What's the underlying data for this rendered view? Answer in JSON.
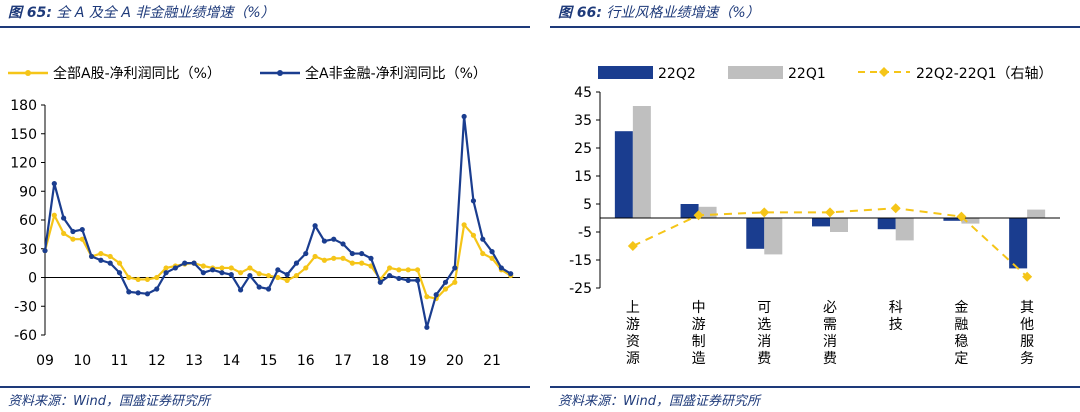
{
  "left": {
    "fig_label": "图 65:",
    "title": "全 A 及全 A 非金融业绩增速（%）",
    "source": "资料来源：Wind，国盛证券研究所",
    "chart_data": {
      "type": "line",
      "y_ticks": [
        "180",
        "150",
        "120",
        "90",
        "60",
        "30",
        "0",
        "-30",
        "-60"
      ],
      "ylim": [
        -60,
        180
      ],
      "x_ticks": [
        "09",
        "10",
        "11",
        "12",
        "13",
        "14",
        "15",
        "16",
        "17",
        "18",
        "19",
        "20",
        "21"
      ],
      "x_tick_positions": [
        2009.0,
        2010.0,
        2011.0,
        2012.0,
        2013.0,
        2014.0,
        2015.0,
        2016.0,
        2017.0,
        2018.0,
        2019.0,
        2020.0,
        2021.0
      ],
      "xlim": [
        2009.0,
        2021.75
      ],
      "x": [
        2009.0,
        2009.25,
        2009.5,
        2009.75,
        2010.0,
        2010.25,
        2010.5,
        2010.75,
        2011.0,
        2011.25,
        2011.5,
        2011.75,
        2012.0,
        2012.25,
        2012.5,
        2012.75,
        2013.0,
        2013.25,
        2013.5,
        2013.75,
        2014.0,
        2014.25,
        2014.5,
        2014.75,
        2015.0,
        2015.25,
        2015.5,
        2015.75,
        2016.0,
        2016.25,
        2016.5,
        2016.75,
        2017.0,
        2017.25,
        2017.5,
        2017.75,
        2018.0,
        2018.25,
        2018.5,
        2018.75,
        2019.0,
        2019.25,
        2019.5,
        2019.75,
        2020.0,
        2020.25,
        2020.5,
        2020.75,
        2021.0,
        2021.25,
        2021.5
      ],
      "series": [
        {
          "name": "全部A股-净利润同比（%）",
          "color": "#f5c518",
          "values": [
            28,
            65,
            46,
            40,
            40,
            22,
            25,
            22,
            15,
            0,
            -2,
            -2,
            0,
            10,
            12,
            14,
            15,
            12,
            10,
            10,
            10,
            5,
            10,
            4,
            2,
            0,
            -3,
            2,
            10,
            22,
            18,
            20,
            20,
            15,
            15,
            12,
            -2,
            10,
            8,
            8,
            8,
            -20,
            -22,
            -12,
            -5,
            55,
            44,
            25,
            20,
            8,
            2
          ]
        },
        {
          "name": "全A非金融-净利润同比（%）",
          "color": "#1a3d8f",
          "values": [
            28,
            98,
            62,
            48,
            50,
            22,
            18,
            15,
            5,
            -15,
            -16,
            -17,
            -12,
            5,
            10,
            15,
            15,
            5,
            8,
            5,
            3,
            -13,
            2,
            -10,
            -12,
            8,
            3,
            15,
            25,
            54,
            38,
            40,
            35,
            25,
            25,
            20,
            -5,
            2,
            -1,
            -3,
            -3,
            -52,
            -18,
            -5,
            10,
            168,
            80,
            40,
            27,
            10,
            4
          ]
        }
      ]
    }
  },
  "right": {
    "fig_label": "图 66:",
    "title": "行业风格业绩增速（%）",
    "source": "资料来源：Wind，国盛证券研究所",
    "chart_data": {
      "type": "bar",
      "categories": [
        "上游资源",
        "中游制造",
        "可选消费",
        "必需消费",
        "科技",
        "金融稳定",
        "其他服务"
      ],
      "y_ticks": [
        "45",
        "35",
        "25",
        "15",
        "5",
        "-5",
        "-15",
        "-25"
      ],
      "ylim": [
        -25,
        45
      ],
      "series": [
        {
          "name": "22Q2",
          "color": "#1a3d8f",
          "type": "bar",
          "values": [
            31,
            5,
            -11,
            -3,
            -4,
            -1,
            -18
          ]
        },
        {
          "name": "22Q1",
          "color": "#bfbfbf",
          "type": "bar",
          "values": [
            40,
            4,
            -13,
            -5,
            -8,
            -2,
            3
          ]
        },
        {
          "name": "22Q2-22Q1（右轴）",
          "color": "#f5c518",
          "type": "line",
          "values": [
            -10,
            1,
            2,
            2,
            3.5,
            0.5,
            -21
          ]
        }
      ]
    }
  }
}
